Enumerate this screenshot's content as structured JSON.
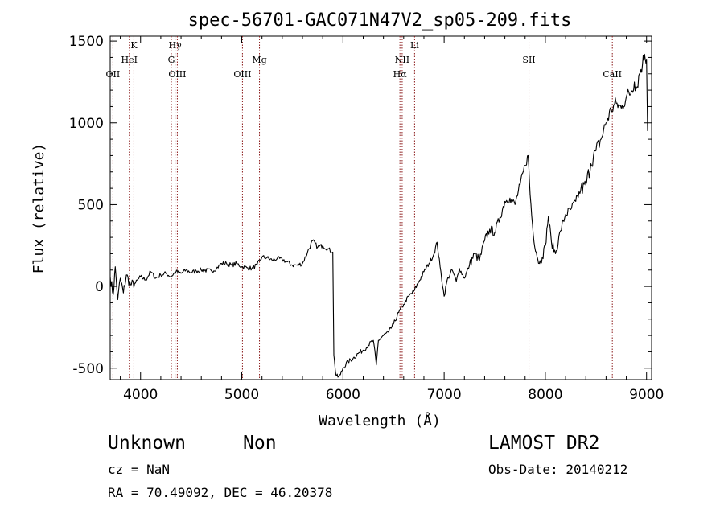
{
  "chart_data": {
    "type": "line",
    "title": "spec-56701-GAC071N47V2_sp05-209.fits",
    "xlabel": "Wavelength (Å)",
    "ylabel": "Flux (relative)",
    "xlim": [
      3700,
      9050
    ],
    "ylim": [
      -570,
      1530
    ],
    "xticks": [
      4000,
      5000,
      6000,
      7000,
      8000,
      9000
    ],
    "yticks": [
      -500,
      0,
      500,
      1000,
      1500
    ],
    "grid": false,
    "line_color": "#000000",
    "marker_line_color": "#8b1a1a",
    "spectral_lines": [
      {
        "name": "OII",
        "x": 3727
      },
      {
        "name": "HeI",
        "x": 3889
      },
      {
        "name": "K",
        "x": 3934
      },
      {
        "name": "G",
        "x": 4304
      },
      {
        "name": "Hγ",
        "x": 4341
      },
      {
        "name": "OIII",
        "x": 4363
      },
      {
        "name": "OIII",
        "x": 5007
      },
      {
        "name": "Mg",
        "x": 5175
      },
      {
        "name": "Hα",
        "x": 6563
      },
      {
        "name": "NII",
        "x": 6585
      },
      {
        "name": "Li",
        "x": 6708
      },
      {
        "name": "SII",
        "x": 7838
      },
      {
        "name": "CaII",
        "x": 8662
      }
    ],
    "series": [
      {
        "points": [
          [
            3700,
            60
          ],
          [
            3730,
            -50
          ],
          [
            3750,
            120
          ],
          [
            3775,
            -80
          ],
          [
            3800,
            50
          ],
          [
            3830,
            -40
          ],
          [
            3860,
            70
          ],
          [
            3900,
            10
          ],
          [
            3950,
            20
          ],
          [
            4000,
            60
          ],
          [
            4050,
            40
          ],
          [
            4100,
            90
          ],
          [
            4150,
            50
          ],
          [
            4200,
            70
          ],
          [
            4250,
            80
          ],
          [
            4300,
            60
          ],
          [
            4350,
            90
          ],
          [
            4400,
            80
          ],
          [
            4450,
            100
          ],
          [
            4500,
            85
          ],
          [
            4550,
            95
          ],
          [
            4600,
            100
          ],
          [
            4700,
            95
          ],
          [
            4750,
            110
          ],
          [
            4800,
            140
          ],
          [
            4850,
            140
          ],
          [
            4900,
            130
          ],
          [
            4950,
            140
          ],
          [
            5000,
            120
          ],
          [
            5050,
            115
          ],
          [
            5100,
            110
          ],
          [
            5150,
            130
          ],
          [
            5200,
            180
          ],
          [
            5250,
            175
          ],
          [
            5300,
            160
          ],
          [
            5350,
            170
          ],
          [
            5400,
            165
          ],
          [
            5450,
            150
          ],
          [
            5500,
            130
          ],
          [
            5550,
            130
          ],
          [
            5600,
            140
          ],
          [
            5650,
            210
          ],
          [
            5700,
            280
          ],
          [
            5750,
            240
          ],
          [
            5800,
            250
          ],
          [
            5850,
            230
          ],
          [
            5900,
            210
          ],
          [
            5910,
            -420
          ],
          [
            5930,
            -540
          ],
          [
            5950,
            -555
          ],
          [
            5975,
            -540
          ],
          [
            6000,
            -500
          ],
          [
            6050,
            -460
          ],
          [
            6100,
            -440
          ],
          [
            6150,
            -410
          ],
          [
            6200,
            -390
          ],
          [
            6250,
            -360
          ],
          [
            6300,
            -330
          ],
          [
            6330,
            -480
          ],
          [
            6350,
            -330
          ],
          [
            6400,
            -300
          ],
          [
            6450,
            -280
          ],
          [
            6500,
            -230
          ],
          [
            6550,
            -160
          ],
          [
            6600,
            -110
          ],
          [
            6650,
            -60
          ],
          [
            6700,
            -30
          ],
          [
            6750,
            30
          ],
          [
            6800,
            90
          ],
          [
            6850,
            140
          ],
          [
            6900,
            200
          ],
          [
            6930,
            270
          ],
          [
            6960,
            120
          ],
          [
            7000,
            -60
          ],
          [
            7030,
            40
          ],
          [
            7080,
            100
          ],
          [
            7120,
            30
          ],
          [
            7150,
            110
          ],
          [
            7200,
            50
          ],
          [
            7250,
            130
          ],
          [
            7300,
            200
          ],
          [
            7350,
            160
          ],
          [
            7400,
            280
          ],
          [
            7450,
            350
          ],
          [
            7500,
            330
          ],
          [
            7550,
            420
          ],
          [
            7600,
            520
          ],
          [
            7650,
            540
          ],
          [
            7700,
            500
          ],
          [
            7750,
            620
          ],
          [
            7800,
            740
          ],
          [
            7830,
            800
          ],
          [
            7850,
            560
          ],
          [
            7880,
            320
          ],
          [
            7910,
            210
          ],
          [
            7940,
            140
          ],
          [
            7970,
            180
          ],
          [
            8000,
            250
          ],
          [
            8030,
            430
          ],
          [
            8060,
            270
          ],
          [
            8100,
            200
          ],
          [
            8150,
            340
          ],
          [
            8200,
            440
          ],
          [
            8250,
            470
          ],
          [
            8300,
            520
          ],
          [
            8350,
            590
          ],
          [
            8400,
            620
          ],
          [
            8450,
            750
          ],
          [
            8500,
            830
          ],
          [
            8550,
            900
          ],
          [
            8600,
            1000
          ],
          [
            8650,
            1080
          ],
          [
            8700,
            1120
          ],
          [
            8750,
            1090
          ],
          [
            8800,
            1160
          ],
          [
            8850,
            1190
          ],
          [
            8880,
            1250
          ],
          [
            8900,
            1210
          ],
          [
            8930,
            1300
          ],
          [
            8960,
            1360
          ],
          [
            8980,
            1420
          ],
          [
            9000,
            1390
          ],
          [
            9010,
            950
          ]
        ]
      }
    ]
  },
  "info": {
    "object_class": "Unknown",
    "object_subclass": "Non",
    "survey": "LAMOST DR2",
    "redshift": "cz = NaN",
    "obs_date": "Obs-Date: 20140212",
    "coords": "RA =  70.49092, DEC =  46.20378"
  }
}
